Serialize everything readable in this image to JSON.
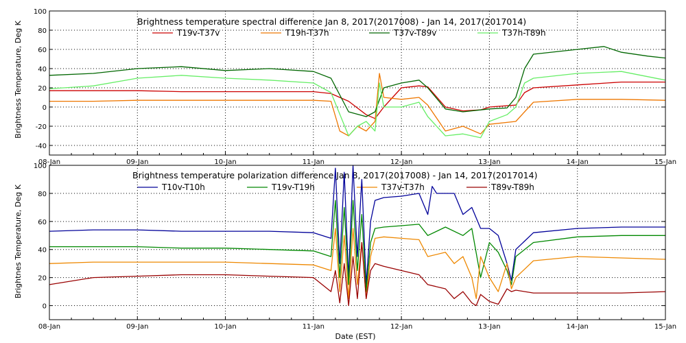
{
  "chart_data": [
    {
      "type": "line",
      "title": "Brightness temperature spectral difference     Jan  8, 2017(2017008) - Jan 14, 2017(2017014)",
      "ylabel": "Brightness Temperature, Deg K",
      "xlabel": "",
      "ylim": [
        -50,
        100
      ],
      "yticks": [
        -40,
        -20,
        0,
        20,
        40,
        60,
        80,
        100
      ],
      "xlim": [
        0,
        7
      ],
      "xticks": [
        0,
        1,
        2,
        3,
        4,
        5,
        6,
        7
      ],
      "xtick_labels": [
        "08-Jan",
        "09-Jan",
        "10-Jan",
        "11-Jan",
        "12-Jan",
        "13-Jan",
        "14-Jan",
        "15-Jan"
      ],
      "grid": true,
      "legend_placement": "top",
      "series": [
        {
          "name": "T19v-T37v",
          "color": "#cc0000",
          "x": [
            0,
            0.5,
            1,
            1.5,
            2,
            2.5,
            3,
            3.2,
            3.4,
            3.6,
            3.7,
            3.8,
            4,
            4.2,
            4.3,
            4.5,
            4.7,
            4.9,
            5,
            5.3,
            5.4,
            5.5,
            6,
            6.5,
            7
          ],
          "y": [
            17,
            17,
            17,
            16,
            16,
            16,
            16,
            14,
            6,
            -8,
            -12,
            0,
            20,
            22,
            21,
            0,
            -4,
            -3,
            0,
            2,
            15,
            20,
            23,
            26,
            26
          ]
        },
        {
          "name": "T19h-T37h",
          "color": "#ee7700",
          "x": [
            0,
            0.5,
            1,
            1.5,
            2,
            2.5,
            3,
            3.2,
            3.3,
            3.4,
            3.5,
            3.6,
            3.7,
            3.75,
            3.8,
            4,
            4.2,
            4.3,
            4.5,
            4.7,
            4.9,
            5,
            5.3,
            5.4,
            5.5,
            6,
            6.5,
            7
          ],
          "y": [
            6,
            6,
            7,
            7,
            7,
            7,
            7,
            6,
            -25,
            -30,
            -20,
            -25,
            -15,
            35,
            10,
            8,
            10,
            2,
            -25,
            -20,
            -28,
            -18,
            -15,
            -5,
            5,
            8,
            8,
            7
          ]
        },
        {
          "name": "T37v-T89v",
          "color": "#006600",
          "x": [
            0,
            0.5,
            1,
            1.5,
            2,
            2.5,
            3,
            3.2,
            3.4,
            3.6,
            3.7,
            3.8,
            4,
            4.2,
            4.3,
            4.5,
            4.7,
            4.9,
            5,
            5.2,
            5.3,
            5.4,
            5.5,
            6,
            6.3,
            6.5,
            6.8,
            7
          ],
          "y": [
            33,
            35,
            40,
            42,
            38,
            40,
            37,
            30,
            -5,
            -10,
            -5,
            20,
            25,
            28,
            20,
            -2,
            -5,
            -3,
            -2,
            -1,
            10,
            40,
            55,
            60,
            63,
            57,
            53,
            51
          ]
        },
        {
          "name": "T37h-T89h",
          "color": "#66ee66",
          "x": [
            0,
            0.5,
            1,
            1.5,
            2,
            2.5,
            3,
            3.2,
            3.4,
            3.5,
            3.6,
            3.7,
            3.75,
            3.8,
            4,
            4.2,
            4.3,
            4.5,
            4.7,
            4.9,
            5,
            5.2,
            5.3,
            5.4,
            5.5,
            6,
            6.5,
            7
          ],
          "y": [
            19,
            22,
            30,
            33,
            30,
            28,
            25,
            15,
            -30,
            -20,
            -15,
            -25,
            25,
            0,
            0,
            5,
            -10,
            -30,
            -28,
            -32,
            -15,
            -8,
            0,
            25,
            30,
            35,
            37,
            28
          ]
        }
      ]
    },
    {
      "type": "line",
      "title": "Brightness temperature polarization difference     Jan  8, 2017(2017008) - Jan 14, 2017(2017014)",
      "ylabel": "Brightnes Temperature, Deg K",
      "xlabel": "Date (EST)",
      "ylim": [
        -10,
        100
      ],
      "yticks": [
        0,
        20,
        40,
        60,
        80,
        100
      ],
      "xlim": [
        0,
        7
      ],
      "xticks": [
        0,
        1,
        2,
        3,
        4,
        5,
        6,
        7
      ],
      "xtick_labels": [
        "08-Jan",
        "09-Jan",
        "10-Jan",
        "11-Jan",
        "12-Jan",
        "13-Jan",
        "14-Jan",
        "15-Jan"
      ],
      "grid": true,
      "legend_placement": "top",
      "series": [
        {
          "name": "T10v-T10h",
          "color": "#000099",
          "x": [
            0,
            0.5,
            1,
            1.5,
            2,
            2.5,
            3,
            3.2,
            3.25,
            3.3,
            3.35,
            3.4,
            3.45,
            3.5,
            3.55,
            3.6,
            3.65,
            3.7,
            3.8,
            4,
            4.2,
            4.3,
            4.35,
            4.4,
            4.6,
            4.7,
            4.8,
            4.9,
            5,
            5.1,
            5.2,
            5.25,
            5.3,
            5.5,
            6,
            6.5,
            7
          ],
          "y": [
            53,
            54,
            54,
            53,
            53,
            53,
            52,
            48,
            98,
            30,
            95,
            20,
            100,
            35,
            90,
            15,
            60,
            75,
            77,
            78,
            80,
            65,
            85,
            80,
            80,
            65,
            70,
            55,
            55,
            50,
            30,
            18,
            40,
            52,
            55,
            56,
            56
          ]
        },
        {
          "name": "T19v-T19h",
          "color": "#008800",
          "x": [
            0,
            0.5,
            1,
            1.5,
            2,
            2.5,
            3,
            3.2,
            3.25,
            3.3,
            3.35,
            3.4,
            3.45,
            3.5,
            3.55,
            3.6,
            3.65,
            3.7,
            3.8,
            4,
            4.2,
            4.3,
            4.5,
            4.7,
            4.8,
            4.9,
            5,
            5.1,
            5.2,
            5.25,
            5.3,
            5.5,
            6,
            6.5,
            7
          ],
          "y": [
            42,
            42,
            42,
            41,
            41,
            40,
            39,
            35,
            75,
            20,
            70,
            15,
            75,
            25,
            65,
            10,
            45,
            55,
            56,
            57,
            58,
            50,
            56,
            50,
            55,
            20,
            45,
            38,
            25,
            15,
            35,
            45,
            49,
            50,
            50
          ]
        },
        {
          "name": "T37v-T37h",
          "color": "#ee8800",
          "x": [
            0,
            0.5,
            1,
            1.5,
            2,
            2.5,
            3,
            3.2,
            3.25,
            3.3,
            3.35,
            3.4,
            3.45,
            3.5,
            3.55,
            3.6,
            3.65,
            3.7,
            3.8,
            4,
            4.2,
            4.3,
            4.5,
            4.6,
            4.7,
            4.8,
            4.85,
            4.9,
            5,
            5.1,
            5.2,
            5.25,
            5.3,
            5.5,
            6,
            6.5,
            7
          ],
          "y": [
            30,
            31,
            31,
            31,
            31,
            30,
            29,
            25,
            55,
            10,
            50,
            5,
            55,
            15,
            45,
            5,
            35,
            48,
            49,
            48,
            47,
            35,
            38,
            30,
            35,
            20,
            5,
            35,
            20,
            10,
            30,
            12,
            20,
            32,
            35,
            34,
            33
          ]
        },
        {
          "name": "T89v-T89h",
          "color": "#990000",
          "x": [
            0,
            0.5,
            1,
            1.5,
            2,
            2.5,
            3,
            3.2,
            3.25,
            3.3,
            3.35,
            3.4,
            3.45,
            3.5,
            3.55,
            3.6,
            3.65,
            3.7,
            3.8,
            4,
            4.2,
            4.3,
            4.5,
            4.6,
            4.7,
            4.8,
            4.85,
            4.9,
            5,
            5.1,
            5.2,
            5.25,
            5.3,
            5.5,
            6,
            6.5,
            7
          ],
          "y": [
            15,
            20,
            21,
            22,
            22,
            21,
            20,
            10,
            25,
            2,
            30,
            0,
            35,
            5,
            45,
            5,
            25,
            30,
            28,
            25,
            22,
            15,
            12,
            5,
            10,
            2,
            0,
            8,
            3,
            1,
            12,
            10,
            11,
            9,
            9,
            9,
            10
          ]
        }
      ]
    }
  ]
}
